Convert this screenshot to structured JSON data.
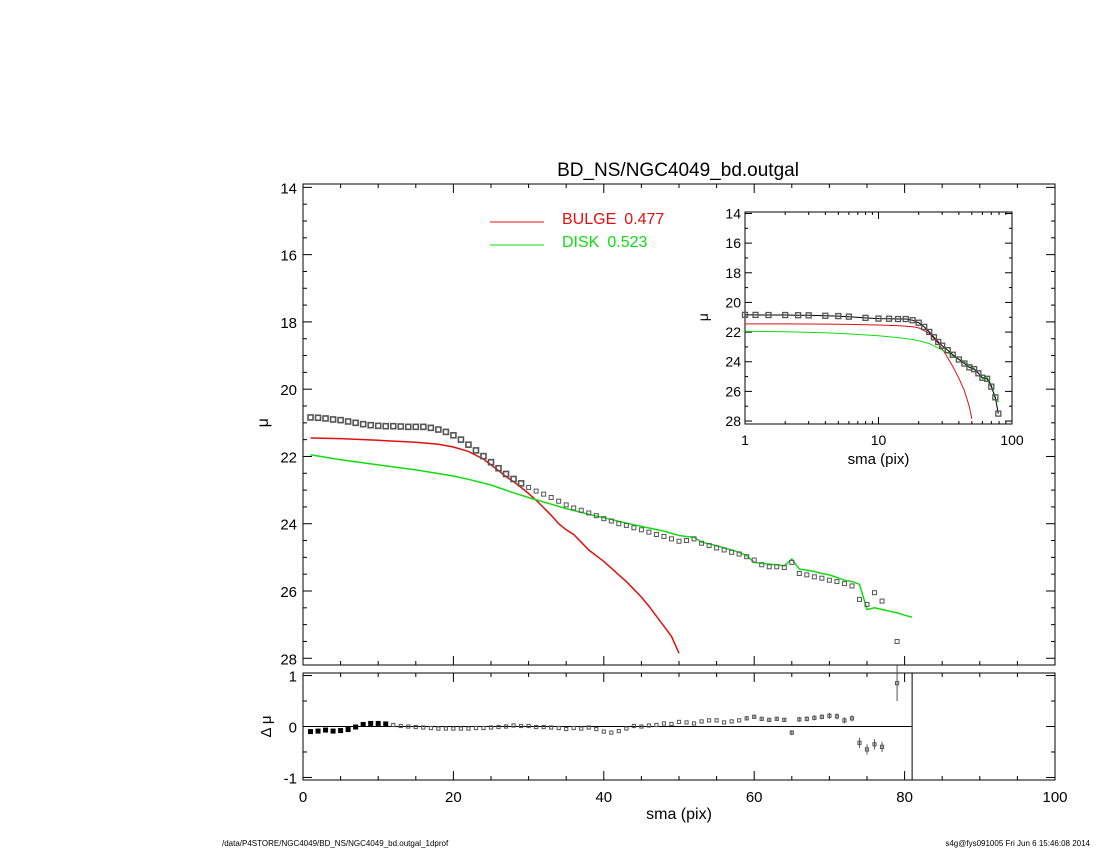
{
  "title": "BD_NS/NGC4049_bd.outgal",
  "footer": {
    "path": "/data/P4STORE/NGC4049/BD_NS/NGC4049_bd.outgal_1dprof",
    "stamp": "s4g@fys091005  Fri Jun  6 15:46:08 2014"
  },
  "legend": {
    "bulge_label": "BULGE",
    "bulge_frac": "0.477",
    "disk_label": "DISK",
    "disk_frac": "0.523"
  },
  "colors": {
    "bulge": "#e01010",
    "disk": "#10dd10",
    "data": "#555555",
    "axes": "#000000"
  },
  "chart_data": [
    {
      "type": "scatter",
      "panel": "main",
      "title": "BD_NS/NGC4049_bd.outgal",
      "xlabel": "",
      "ylabel": "μ",
      "xlim": [
        0,
        100
      ],
      "ylim": [
        28.2,
        13.9
      ],
      "yticks": [
        "14",
        "16",
        "18",
        "20",
        "22",
        "24",
        "26",
        "28"
      ],
      "series": [
        {
          "name": "data",
          "x": [
            1,
            2,
            3,
            4,
            5,
            6,
            7,
            8,
            9,
            10,
            11,
            12,
            13,
            14,
            15,
            16,
            17,
            18,
            19,
            20,
            21,
            22,
            23,
            24,
            25,
            26,
            27,
            28,
            29,
            30,
            31,
            32,
            33,
            34,
            35,
            36,
            37,
            38,
            39,
            40,
            41,
            42,
            43,
            44,
            45,
            46,
            47,
            48,
            49,
            50,
            51,
            52,
            53,
            54,
            55,
            56,
            57,
            58,
            59,
            60,
            61,
            62,
            63,
            64,
            65,
            66,
            67,
            68,
            69,
            70,
            71,
            72,
            73,
            74,
            75,
            76,
            77,
            78,
            79
          ],
          "y": [
            20.84,
            20.85,
            20.87,
            20.9,
            20.92,
            20.96,
            21.0,
            21.04,
            21.07,
            21.09,
            21.1,
            21.1,
            21.11,
            21.12,
            21.12,
            21.12,
            21.15,
            21.2,
            21.27,
            21.37,
            21.5,
            21.65,
            21.82,
            21.99,
            22.17,
            22.35,
            22.52,
            22.67,
            22.8,
            22.92,
            23.03,
            23.12,
            23.22,
            23.33,
            23.44,
            23.53,
            23.6,
            23.68,
            23.76,
            23.85,
            23.92,
            24.0,
            24.05,
            24.12,
            24.18,
            24.25,
            24.32,
            24.38,
            24.45,
            24.52,
            24.5,
            24.45,
            24.58,
            24.65,
            24.72,
            24.78,
            24.85,
            24.9,
            24.98,
            25.08,
            25.22,
            25.28,
            25.28,
            25.3,
            25.15,
            25.48,
            25.52,
            25.58,
            25.62,
            25.68,
            25.72,
            25.78,
            25.85,
            26.25,
            26.4,
            26.05,
            26.3,
            null,
            27.5
          ]
        },
        {
          "name": "BULGE",
          "x": [
            1,
            5,
            10,
            15,
            18,
            20,
            22,
            24,
            25,
            26,
            27,
            28,
            29,
            30,
            31,
            32,
            33,
            34,
            35,
            36,
            37,
            38,
            39,
            40,
            41,
            42,
            43,
            44,
            45,
            46,
            47,
            48,
            49,
            50
          ],
          "y": [
            21.45,
            21.47,
            21.52,
            21.58,
            21.64,
            21.72,
            21.85,
            22.08,
            22.25,
            22.42,
            22.6,
            22.75,
            22.92,
            23.1,
            23.3,
            23.52,
            23.75,
            24.0,
            24.18,
            24.32,
            24.55,
            24.78,
            24.95,
            25.12,
            25.32,
            25.52,
            25.72,
            25.95,
            26.18,
            26.45,
            26.75,
            27.05,
            27.35,
            27.85
          ]
        },
        {
          "name": "DISK",
          "x": [
            1,
            5,
            10,
            15,
            20,
            22,
            25,
            28,
            30,
            33,
            35,
            38,
            40,
            43,
            45,
            48,
            50,
            51,
            52,
            53,
            54,
            55,
            56,
            57,
            58,
            59,
            60,
            61,
            62,
            63,
            64,
            65,
            66,
            67,
            68,
            69,
            70,
            71,
            72,
            73,
            74,
            75,
            76,
            77,
            78,
            79,
            80,
            81
          ],
          "y": [
            21.95,
            22.1,
            22.25,
            22.4,
            22.58,
            22.68,
            22.85,
            23.08,
            23.22,
            23.42,
            23.55,
            23.72,
            23.82,
            23.98,
            24.08,
            24.22,
            24.35,
            24.38,
            24.4,
            24.55,
            24.6,
            24.65,
            24.72,
            24.78,
            24.85,
            24.95,
            25.15,
            25.18,
            25.2,
            25.22,
            25.25,
            25.05,
            25.35,
            25.38,
            25.42,
            25.48,
            25.52,
            25.6,
            25.68,
            25.72,
            25.8,
            26.55,
            26.5,
            26.55,
            26.6,
            26.65,
            26.72,
            26.78
          ]
        }
      ],
      "legend": "top-center"
    },
    {
      "type": "scatter",
      "panel": "inset",
      "xlabel": "sma (pix)",
      "ylabel": "μ",
      "xscale": "log",
      "xlim": [
        1,
        100
      ],
      "ylim": [
        28.2,
        13.9
      ],
      "xticks": [
        "1",
        "10",
        "100"
      ],
      "yticks": [
        "14",
        "16",
        "18",
        "20",
        "22",
        "24",
        "26",
        "28"
      ],
      "series": [
        {
          "name": "data",
          "x": [
            1,
            1.2,
            1.5,
            2,
            2.5,
            3,
            4,
            5,
            6,
            8,
            10,
            12,
            14,
            16,
            18,
            20,
            22,
            24,
            26,
            28,
            30,
            33,
            36,
            40,
            44,
            48,
            52,
            56,
            60,
            65,
            70,
            75,
            79
          ],
          "y": [
            20.84,
            20.84,
            20.85,
            20.85,
            20.86,
            20.87,
            20.9,
            20.92,
            20.96,
            21.04,
            21.09,
            21.1,
            21.12,
            21.12,
            21.2,
            21.37,
            21.65,
            21.99,
            22.35,
            22.67,
            22.92,
            23.22,
            23.53,
            23.85,
            24.12,
            24.38,
            24.5,
            24.78,
            25.08,
            25.15,
            25.68,
            26.4,
            27.5
          ]
        },
        {
          "name": "BULGE",
          "x": [
            1,
            2,
            4,
            6,
            10,
            14,
            18,
            20,
            24,
            28,
            32,
            36,
            40,
            44,
            48,
            50
          ],
          "y": [
            21.45,
            21.45,
            21.46,
            21.48,
            21.52,
            21.56,
            21.64,
            21.72,
            22.08,
            22.75,
            23.52,
            24.32,
            25.12,
            25.95,
            27.05,
            27.85
          ]
        },
        {
          "name": "DISK",
          "x": [
            1,
            2,
            4,
            6,
            10,
            14,
            18,
            20,
            24,
            28,
            32,
            36,
            40,
            45,
            50,
            55,
            60,
            65,
            70,
            75,
            80
          ],
          "y": [
            21.95,
            21.98,
            22.05,
            22.12,
            22.25,
            22.37,
            22.5,
            22.58,
            22.78,
            23.08,
            23.35,
            23.6,
            23.82,
            24.08,
            24.35,
            24.65,
            25.15,
            25.05,
            25.52,
            26.55,
            26.72
          ]
        }
      ]
    },
    {
      "type": "scatter",
      "panel": "residual",
      "xlabel": "sma (pix)",
      "ylabel": "Δ μ",
      "xlim": [
        0,
        100
      ],
      "ylim": [
        -1.05,
        1.05
      ],
      "xticks": [
        "0",
        "20",
        "40",
        "60",
        "80",
        "100"
      ],
      "yticks": [
        "1",
        "0",
        "-1"
      ],
      "cutoff_x": 81,
      "series": [
        {
          "name": "residual",
          "x": [
            1,
            2,
            3,
            4,
            5,
            6,
            7,
            8,
            9,
            10,
            11,
            12,
            13,
            14,
            15,
            16,
            17,
            18,
            19,
            20,
            21,
            22,
            23,
            24,
            25,
            26,
            27,
            28,
            29,
            30,
            31,
            32,
            33,
            34,
            35,
            36,
            37,
            38,
            39,
            40,
            41,
            42,
            43,
            44,
            45,
            46,
            47,
            48,
            49,
            50,
            51,
            52,
            53,
            54,
            55,
            56,
            57,
            58,
            59,
            60,
            61,
            62,
            63,
            64,
            65,
            66,
            67,
            68,
            69,
            70,
            71,
            72,
            73,
            74,
            75,
            76,
            77,
            78,
            79
          ],
          "y": [
            -0.1,
            -0.09,
            -0.07,
            -0.09,
            -0.08,
            -0.06,
            -0.01,
            0.04,
            0.06,
            0.06,
            0.05,
            0.03,
            0.01,
            0.0,
            -0.01,
            -0.02,
            -0.03,
            -0.04,
            -0.04,
            -0.04,
            -0.04,
            -0.04,
            -0.03,
            -0.03,
            -0.02,
            -0.01,
            0.0,
            0.02,
            0.01,
            0.01,
            -0.01,
            -0.01,
            -0.02,
            -0.03,
            -0.05,
            -0.03,
            -0.04,
            -0.02,
            -0.05,
            -0.1,
            -0.12,
            -0.09,
            -0.04,
            0.01,
            0.0,
            0.02,
            0.03,
            0.06,
            0.05,
            0.09,
            0.08,
            0.06,
            0.1,
            0.12,
            0.12,
            0.08,
            0.1,
            0.12,
            0.16,
            0.19,
            0.15,
            0.13,
            0.15,
            0.13,
            -0.12,
            0.14,
            0.15,
            0.17,
            0.19,
            0.21,
            0.2,
            0.12,
            0.16,
            -0.32,
            -0.45,
            -0.35,
            -0.4,
            null,
            0.85
          ],
          "err": [
            0.02,
            0.02,
            0.02,
            0.02,
            0.02,
            0.02,
            0.02,
            0.02,
            0.02,
            0.02,
            0.02,
            0.02,
            0.02,
            0.02,
            0.02,
            0.02,
            0.02,
            0.02,
            0.02,
            0.02,
            0.02,
            0.02,
            0.02,
            0.02,
            0.02,
            0.02,
            0.02,
            0.02,
            0.02,
            0.02,
            0.02,
            0.02,
            0.02,
            0.02,
            0.02,
            0.02,
            0.02,
            0.02,
            0.02,
            0.02,
            0.02,
            0.02,
            0.02,
            0.02,
            0.02,
            0.02,
            0.02,
            0.02,
            0.02,
            0.03,
            0.03,
            0.03,
            0.03,
            0.03,
            0.03,
            0.03,
            0.03,
            0.03,
            0.04,
            0.04,
            0.04,
            0.04,
            0.04,
            0.04,
            0.05,
            0.05,
            0.05,
            0.05,
            0.05,
            0.06,
            0.06,
            0.06,
            0.06,
            0.1,
            0.1,
            0.1,
            0.1,
            null,
            0.35
          ]
        }
      ]
    }
  ]
}
